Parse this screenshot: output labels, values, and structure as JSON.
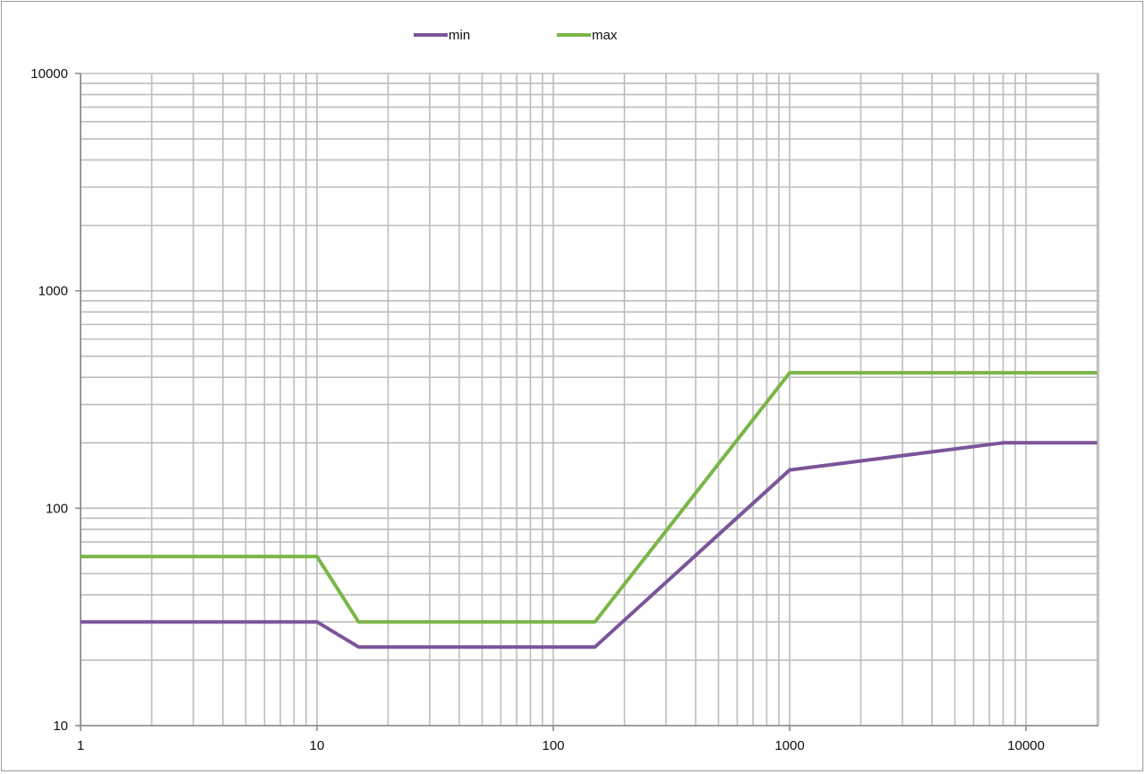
{
  "chart_data": {
    "type": "line",
    "title": "",
    "xlabel": "",
    "ylabel": "",
    "x_scale": "log",
    "y_scale": "log",
    "xlim": [
      1,
      20000
    ],
    "ylim": [
      10,
      10000
    ],
    "x_ticks": [
      1,
      10,
      100,
      1000,
      10000
    ],
    "x_tick_labels": [
      "1",
      "10",
      "100",
      "1000",
      "10000"
    ],
    "y_ticks": [
      10,
      100,
      1000,
      10000
    ],
    "y_tick_labels": [
      "10",
      "100",
      "1000",
      "10000"
    ],
    "grid": true,
    "legend_position": "top-center",
    "series": [
      {
        "name": "min",
        "color": "#7b559a",
        "points": [
          [
            1,
            30
          ],
          [
            10,
            30
          ],
          [
            15,
            23
          ],
          [
            150,
            23
          ],
          [
            1000,
            150
          ],
          [
            8000,
            200
          ],
          [
            20000,
            200
          ]
        ]
      },
      {
        "name": "max",
        "color": "#7ab648",
        "points": [
          [
            1,
            60
          ],
          [
            10,
            60
          ],
          [
            15,
            30
          ],
          [
            150,
            30
          ],
          [
            1000,
            420
          ],
          [
            20000,
            420
          ]
        ]
      }
    ]
  }
}
